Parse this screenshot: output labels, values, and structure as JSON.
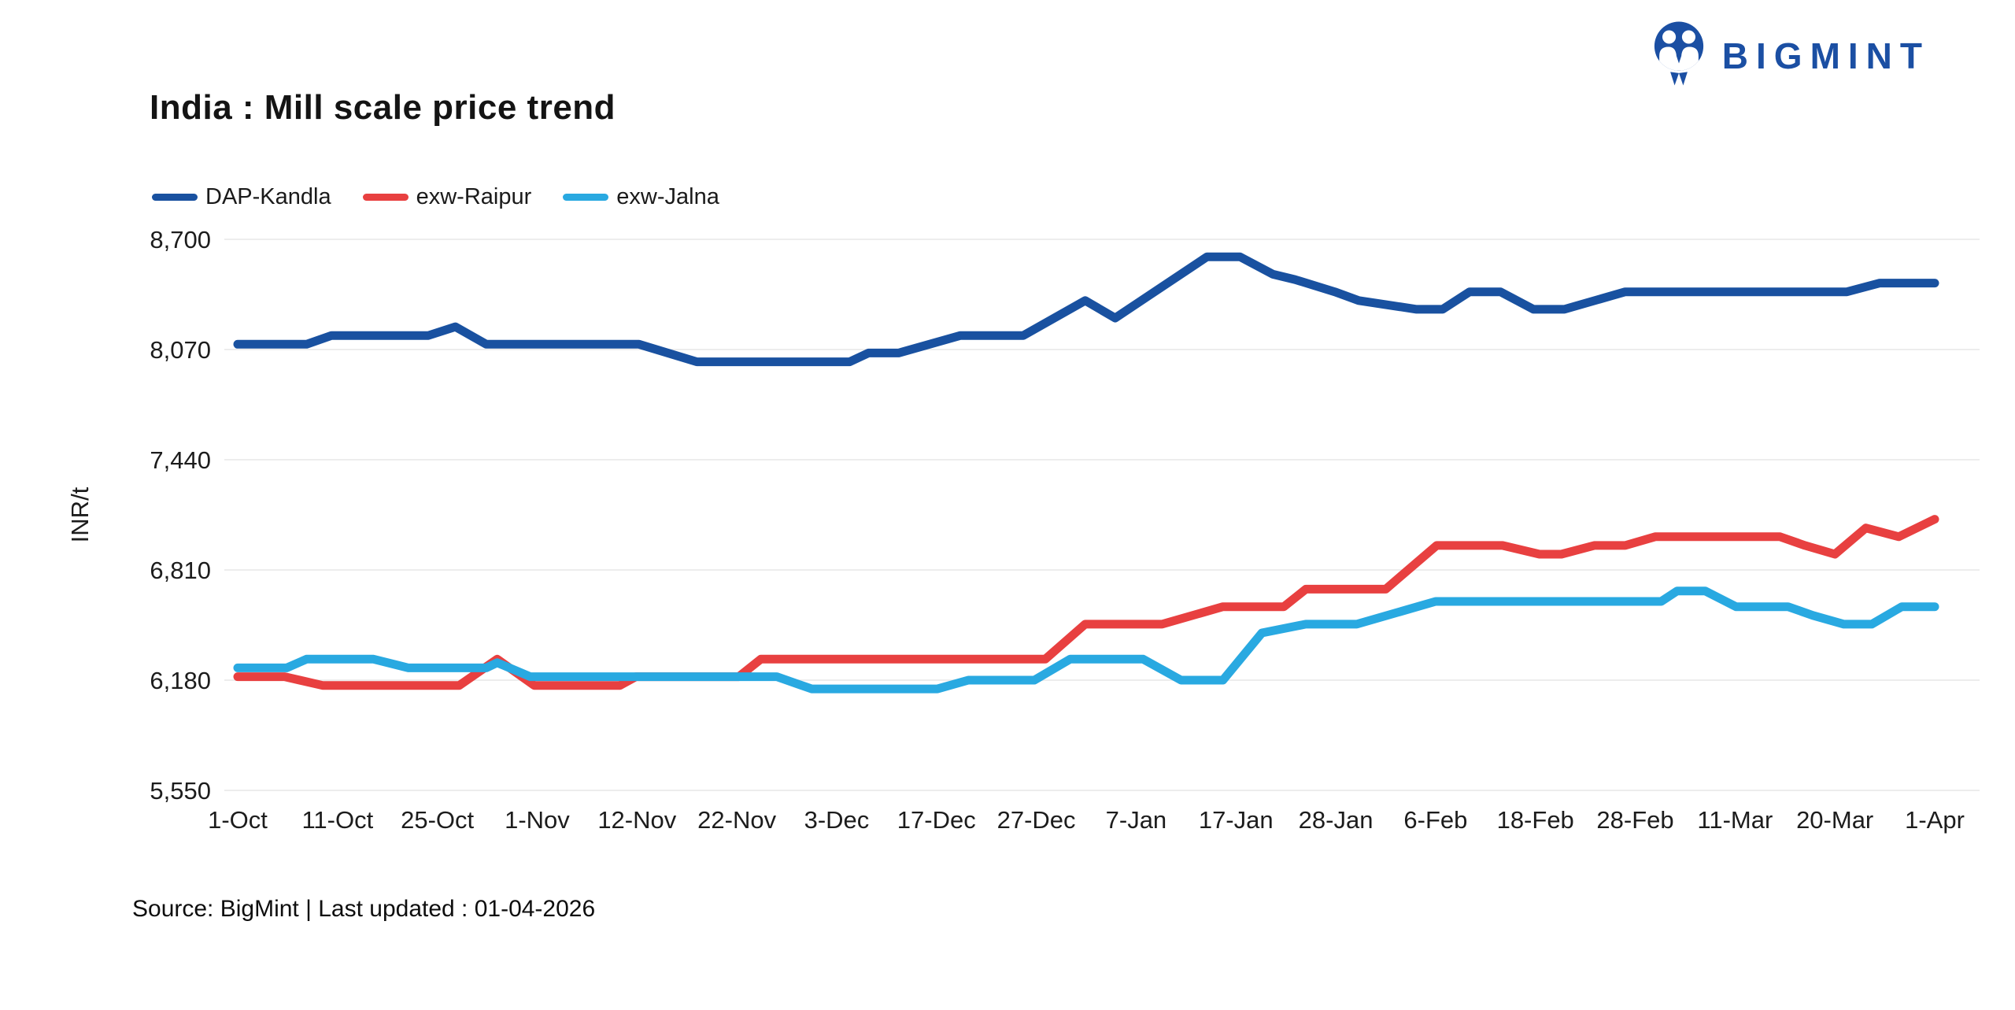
{
  "header": {
    "title": "India : Mill scale price trend",
    "brand": "BIGMINT"
  },
  "legend": [
    {
      "label": "DAP-Kandla",
      "color": "#1951a0"
    },
    {
      "label": "exw-Raipur",
      "color": "#e84040"
    },
    {
      "label": "exw-Jalna",
      "color": "#29a9e1"
    }
  ],
  "axes": {
    "y_title": "INR/t",
    "y_tick_labels": [
      "5,550",
      "6,180",
      "6,810",
      "7,440",
      "8,070",
      "8,700"
    ],
    "x_tick_labels": [
      "1-Oct",
      "11-Oct",
      "25-Oct",
      "1-Nov",
      "12-Nov",
      "22-Nov",
      "3-Dec",
      "17-Dec",
      "27-Dec",
      "7-Jan",
      "17-Jan",
      "28-Jan",
      "6-Feb",
      "18-Feb",
      "28-Feb",
      "11-Mar",
      "20-Mar",
      "1-Apr"
    ]
  },
  "footer": {
    "source": "Source: BigMint | Last updated : 01-04-2026"
  },
  "colors": {
    "grid": "#ededed",
    "tick_text": "#1c1c1c",
    "title_text": "#141414",
    "brand_blue": "#1b4fa3"
  },
  "chart_data": {
    "type": "line",
    "title": "India : Mill scale price trend",
    "xlabel": "",
    "ylabel": "INR/t",
    "ylim": [
      5550,
      8700
    ],
    "y_tick_values": [
      5550,
      6180,
      6810,
      7440,
      8070,
      8700
    ],
    "x_domain": [
      0,
      17
    ],
    "x_tick_labels": [
      "1-Oct",
      "11-Oct",
      "25-Oct",
      "1-Nov",
      "12-Nov",
      "22-Nov",
      "3-Dec",
      "17-Dec",
      "27-Dec",
      "7-Jan",
      "17-Jan",
      "28-Jan",
      "6-Feb",
      "18-Feb",
      "28-Feb",
      "11-Mar",
      "20-Mar",
      "1-Apr"
    ],
    "grid": "horizontal",
    "legend_position": "top-left",
    "series": [
      {
        "name": "DAP-Kandla",
        "color": "#1951a0",
        "points": [
          [
            0,
            8100
          ],
          [
            0.69,
            8100
          ],
          [
            0.94,
            8150
          ],
          [
            1.91,
            8150
          ],
          [
            2.18,
            8200
          ],
          [
            2.49,
            8100
          ],
          [
            4.02,
            8100
          ],
          [
            4.6,
            8000
          ],
          [
            6.13,
            8000
          ],
          [
            6.32,
            8050
          ],
          [
            6.62,
            8050
          ],
          [
            7.24,
            8150
          ],
          [
            7.87,
            8150
          ],
          [
            8.49,
            8350
          ],
          [
            8.79,
            8250
          ],
          [
            9.71,
            8600
          ],
          [
            10.04,
            8600
          ],
          [
            10.37,
            8500
          ],
          [
            10.59,
            8470
          ],
          [
            10.99,
            8400
          ],
          [
            11.23,
            8350
          ],
          [
            11.81,
            8300
          ],
          [
            12.07,
            8300
          ],
          [
            12.34,
            8400
          ],
          [
            12.65,
            8400
          ],
          [
            12.98,
            8300
          ],
          [
            13.29,
            8300
          ],
          [
            13.9,
            8400
          ],
          [
            16.12,
            8400
          ],
          [
            16.45,
            8450
          ],
          [
            17,
            8450
          ]
        ]
      },
      {
        "name": "exw-Raipur",
        "color": "#e84040",
        "points": [
          [
            0,
            6200
          ],
          [
            0.47,
            6200
          ],
          [
            0.85,
            6150
          ],
          [
            2.22,
            6150
          ],
          [
            2.6,
            6300
          ],
          [
            2.97,
            6150
          ],
          [
            3.83,
            6150
          ],
          [
            3.99,
            6200
          ],
          [
            5.02,
            6200
          ],
          [
            5.24,
            6300
          ],
          [
            8.09,
            6300
          ],
          [
            8.49,
            6500
          ],
          [
            9.26,
            6500
          ],
          [
            9.87,
            6600
          ],
          [
            10.48,
            6600
          ],
          [
            10.7,
            6700
          ],
          [
            11.5,
            6700
          ],
          [
            12.01,
            6950
          ],
          [
            12.67,
            6950
          ],
          [
            13.04,
            6900
          ],
          [
            13.26,
            6900
          ],
          [
            13.59,
            6950
          ],
          [
            13.9,
            6950
          ],
          [
            14.2,
            7000
          ],
          [
            15.45,
            7000
          ],
          [
            15.7,
            6950
          ],
          [
            16,
            6900
          ],
          [
            16.31,
            7050
          ],
          [
            16.64,
            7000
          ],
          [
            17,
            7100
          ]
        ]
      },
      {
        "name": "exw-Jalna",
        "color": "#29a9e1",
        "points": [
          [
            0,
            6250
          ],
          [
            0.49,
            6250
          ],
          [
            0.69,
            6300
          ],
          [
            1.36,
            6300
          ],
          [
            1.71,
            6250
          ],
          [
            2.49,
            6250
          ],
          [
            2.6,
            6280
          ],
          [
            2.93,
            6200
          ],
          [
            5.4,
            6200
          ],
          [
            5.75,
            6130
          ],
          [
            7.01,
            6130
          ],
          [
            7.32,
            6180
          ],
          [
            7.98,
            6180
          ],
          [
            8.34,
            6300
          ],
          [
            9.07,
            6300
          ],
          [
            9.45,
            6180
          ],
          [
            9.87,
            6180
          ],
          [
            10.26,
            6450
          ],
          [
            10.7,
            6500
          ],
          [
            11.21,
            6500
          ],
          [
            12,
            6630
          ],
          [
            14.26,
            6630
          ],
          [
            14.42,
            6690
          ],
          [
            14.7,
            6690
          ],
          [
            15.01,
            6600
          ],
          [
            15.53,
            6600
          ],
          [
            15.78,
            6550
          ],
          [
            16.09,
            6500
          ],
          [
            16.37,
            6500
          ],
          [
            16.67,
            6600
          ],
          [
            17,
            6600
          ]
        ]
      }
    ]
  }
}
